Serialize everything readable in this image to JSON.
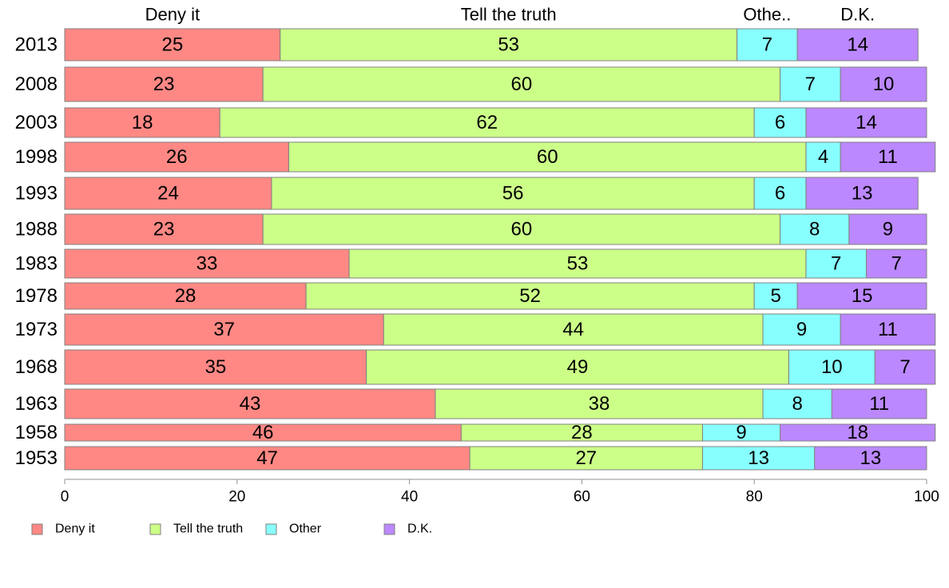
{
  "chart_data": {
    "type": "bar",
    "orientation": "horizontal",
    "stacked": true,
    "categories": [
      "2013",
      "2008",
      "2003",
      "1998",
      "1993",
      "1988",
      "1983",
      "1978",
      "1973",
      "1968",
      "1963",
      "1958",
      "1953"
    ],
    "series": [
      {
        "name": "Deny it",
        "color": "#ff8884",
        "values": [
          25,
          23,
          18,
          26,
          24,
          23,
          33,
          28,
          37,
          35,
          43,
          46,
          47
        ]
      },
      {
        "name": "Tell the truth",
        "color": "#ccff88",
        "values": [
          53,
          60,
          62,
          60,
          56,
          60,
          53,
          52,
          44,
          49,
          38,
          28,
          27
        ]
      },
      {
        "name": "Other",
        "color": "#88ffff",
        "values": [
          7,
          7,
          6,
          4,
          6,
          8,
          7,
          5,
          9,
          10,
          8,
          9,
          13
        ]
      },
      {
        "name": "D.K.",
        "color": "#bb88ff",
        "values": [
          14,
          10,
          14,
          11,
          13,
          9,
          7,
          15,
          11,
          7,
          11,
          18,
          13
        ]
      }
    ],
    "top_headers": [
      "Deny it",
      "Tell the truth",
      "Othe..",
      "D.K."
    ],
    "xlim": [
      0,
      100
    ],
    "xticks": [
      0,
      20,
      40,
      60,
      80,
      100
    ],
    "legend_position": "bottom-left",
    "grid": false
  }
}
